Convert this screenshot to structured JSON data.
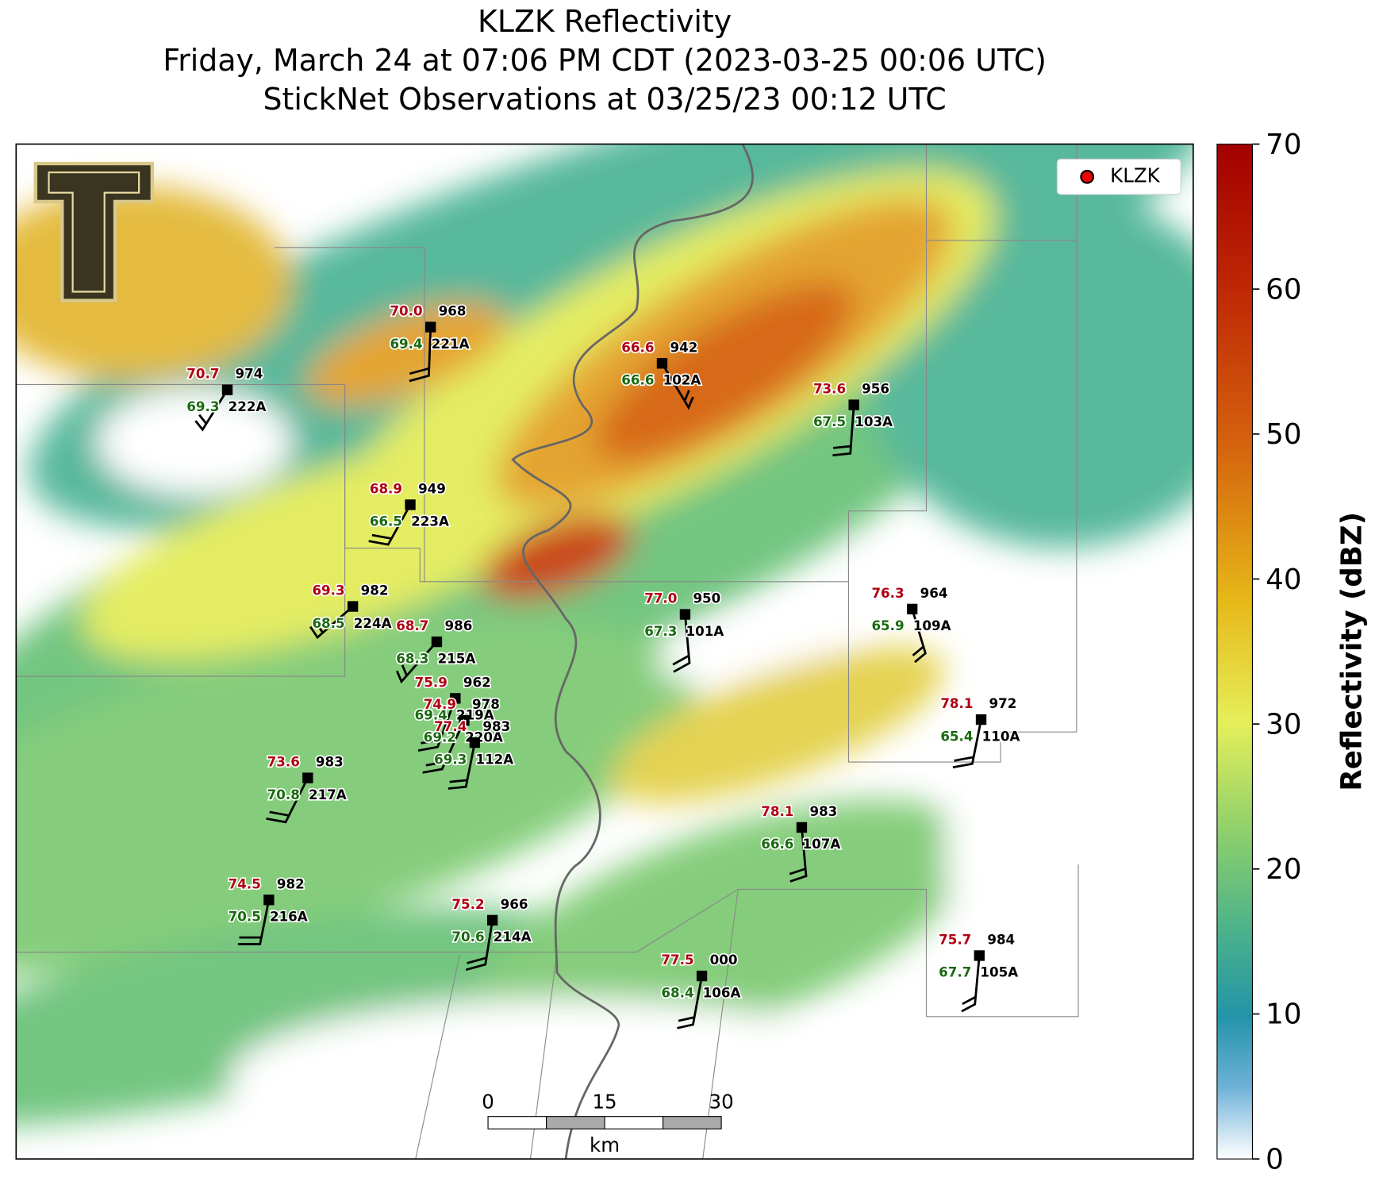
{
  "title": "KLZK Reflectivity",
  "subtitle": "Friday, March 24 at 07:06 PM CDT (2023-03-25 00:06 UTC)",
  "observation_time": "StickNet Observations at 03/25/23 00:12 UTC",
  "legend": [
    "KLZK"
  ],
  "colorbar": {
    "label": "Reflectivity (dBZ)",
    "lim": [
      0,
      70
    ],
    "ticks": [
      0,
      10,
      20,
      30,
      40,
      50,
      60,
      70
    ]
  },
  "scale_bar": {
    "ticks": [
      "0",
      "15",
      "30"
    ],
    "unit": "km"
  },
  "stations": [
    {
      "id": "221A",
      "temp": "70.0",
      "dewpoint": "69.4",
      "pressure": "968"
    },
    {
      "id": "102A",
      "temp": "66.6",
      "dewpoint": "66.6",
      "pressure": "942"
    },
    {
      "id": "222A",
      "temp": "70.7",
      "dewpoint": "69.3",
      "pressure": "974"
    },
    {
      "id": "103A",
      "temp": "73.6",
      "dewpoint": "67.5",
      "pressure": "956"
    },
    {
      "id": "223A",
      "temp": "68.9",
      "dewpoint": "66.5",
      "pressure": "949"
    },
    {
      "id": "224A",
      "temp": "69.3",
      "dewpoint": "68.5",
      "pressure": "982"
    },
    {
      "id": "215A",
      "temp": "68.7",
      "dewpoint": "68.3",
      "pressure": "986"
    },
    {
      "id": "101A",
      "temp": "77.0",
      "dewpoint": "67.3",
      "pressure": "950"
    },
    {
      "id": "109A",
      "temp": "76.3",
      "dewpoint": "65.9",
      "pressure": "964"
    },
    {
      "id": "110A",
      "temp": "78.1",
      "dewpoint": "65.4",
      "pressure": "972"
    },
    {
      "id": "219A",
      "temp": "75.9",
      "dewpoint": "69.4",
      "pressure": "962"
    },
    {
      "id": "220A",
      "temp": "74.9",
      "dewpoint": "69.2",
      "pressure": "978"
    },
    {
      "id": "112A",
      "temp": "77.4",
      "dewpoint": "69.3",
      "pressure": "983"
    },
    {
      "id": "217A",
      "temp": "73.6",
      "dewpoint": "70.8",
      "pressure": "983"
    },
    {
      "id": "107A",
      "temp": "78.1",
      "dewpoint": "66.6",
      "pressure": "983"
    },
    {
      "id": "216A",
      "temp": "74.5",
      "dewpoint": "70.5",
      "pressure": "982"
    },
    {
      "id": "214A",
      "temp": "75.2",
      "dewpoint": "70.6",
      "pressure": "966"
    },
    {
      "id": "106A",
      "temp": "77.5",
      "dewpoint": "68.4",
      "pressure": "000"
    },
    {
      "id": "105A",
      "temp": "75.7",
      "dewpoint": "67.7",
      "pressure": "984"
    }
  ]
}
